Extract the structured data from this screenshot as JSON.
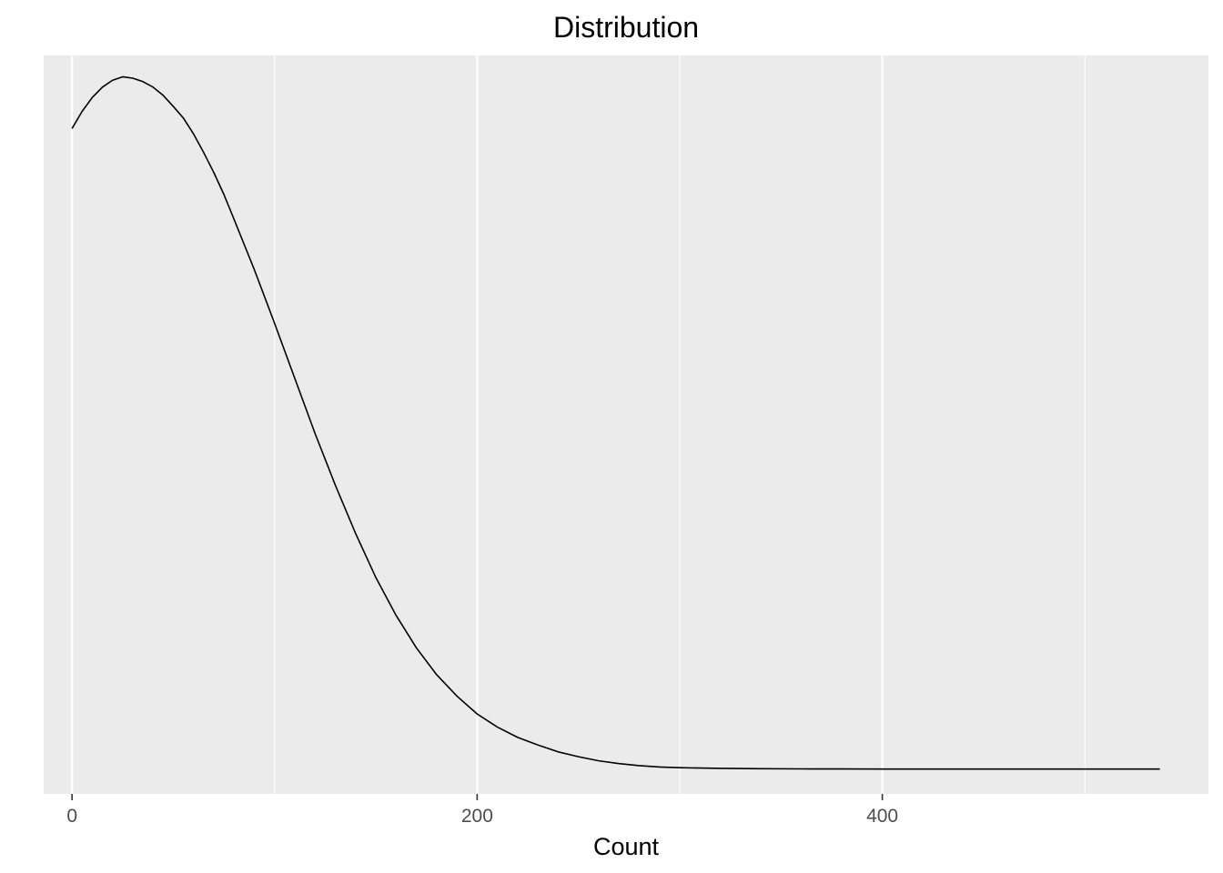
{
  "chart_data": {
    "type": "line",
    "title": "Distribution",
    "xlabel": "Count",
    "ylabel": "",
    "xlim": [
      -14,
      561
    ],
    "ylim": [
      -0.036,
      1.036
    ],
    "x_ticks": [
      0,
      200,
      400
    ],
    "x_tick_labels": [
      "0",
      "200",
      "400"
    ],
    "x_minor_gridlines": [
      100,
      300,
      500
    ],
    "y_axis_visible": false,
    "grid": true,
    "legend": "none",
    "series": [
      {
        "x": [
          0,
          5,
          10,
          15,
          20,
          25,
          30,
          35,
          40,
          45,
          50,
          55,
          60,
          65,
          70,
          75,
          80,
          90,
          100,
          110,
          120,
          130,
          140,
          150,
          160,
          170,
          180,
          190,
          200,
          210,
          220,
          230,
          240,
          250,
          260,
          270,
          280,
          290,
          300,
          320,
          340,
          360,
          380,
          400,
          420,
          440,
          460,
          480,
          500,
          520,
          537
        ],
        "y": [
          0.93,
          0.955,
          0.975,
          0.99,
          1.0,
          1.005,
          1.003,
          0.998,
          0.99,
          0.978,
          0.962,
          0.945,
          0.922,
          0.895,
          0.866,
          0.834,
          0.798,
          0.725,
          0.647,
          0.567,
          0.487,
          0.412,
          0.342,
          0.278,
          0.223,
          0.176,
          0.137,
          0.106,
          0.08,
          0.061,
          0.046,
          0.035,
          0.025,
          0.018,
          0.012,
          0.008,
          0.005,
          0.003,
          0.002,
          0.001,
          0.0005,
          0.0003,
          0.0002,
          0.0001,
          0.0,
          0.0,
          0.0,
          0.0,
          0.0,
          0.0,
          0.0
        ]
      }
    ]
  },
  "colors": {
    "panel_background": "#EBEBEB",
    "gridline": "#FFFFFF",
    "line": "#000000",
    "tick_label": "#4D4D4D",
    "tick_mark": "#333333"
  }
}
